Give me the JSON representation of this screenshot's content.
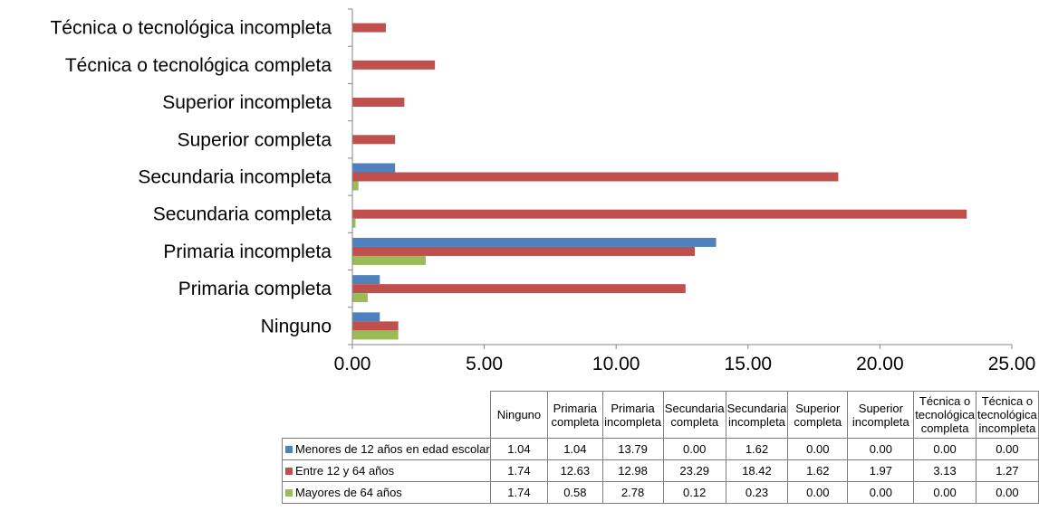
{
  "chart_data": {
    "type": "bar",
    "orientation": "horizontal",
    "categories": [
      "Ninguno",
      "Primaria completa",
      "Primaria incompleta",
      "Secundaria completa",
      "Secundaria incompleta",
      "Superior completa",
      "Superior incompleta",
      "Técnica o tecnológica completa",
      "Técnica o tecnológica incompleta"
    ],
    "table_headers": [
      "Ninguno",
      "Primaria\ncompleta",
      "Primaria\nincompleta",
      "Secundaria\ncompleta",
      "Secundaria\nincompleta",
      "Superior\ncompleta",
      "Superior\nincompleta",
      "Técnica o\ntecnológica\ncompleta",
      "Técnica o\ntecnológica\nincompleta"
    ],
    "series": [
      {
        "name": "Menores de 12 años en edad escolar",
        "color": "#4f81bd",
        "values": [
          1.04,
          1.04,
          13.79,
          0.0,
          1.62,
          0.0,
          0.0,
          0.0,
          0.0
        ],
        "labels": [
          "1.04",
          "1.04",
          "13.79",
          "0.00",
          "1.62",
          "0.00",
          "0.00",
          "0.00",
          "0.00"
        ]
      },
      {
        "name": "Entre 12 y 64 años",
        "color": "#c0504d",
        "values": [
          1.74,
          12.63,
          12.98,
          23.29,
          18.42,
          1.62,
          1.97,
          3.13,
          1.27
        ],
        "labels": [
          "1.74",
          "12.63",
          "12.98",
          "23.29",
          "18.42",
          "1.62",
          "1.97",
          "3.13",
          "1.27"
        ]
      },
      {
        "name": "Mayores de 64 años",
        "color": "#9bbb59",
        "values": [
          1.74,
          0.58,
          2.78,
          0.12,
          0.23,
          0.0,
          0.0,
          0.0,
          0.0
        ],
        "labels": [
          "1.74",
          "0.58",
          "2.78",
          "0.12",
          "0.23",
          "0.00",
          "0.00",
          "0.00",
          "0.00"
        ]
      }
    ],
    "xlim": [
      0,
      25
    ],
    "x_ticks": [
      "0.00",
      "5.00",
      "10.00",
      "15.00",
      "20.00",
      "25.00"
    ],
    "grid": false,
    "legend": "data table below chart"
  }
}
